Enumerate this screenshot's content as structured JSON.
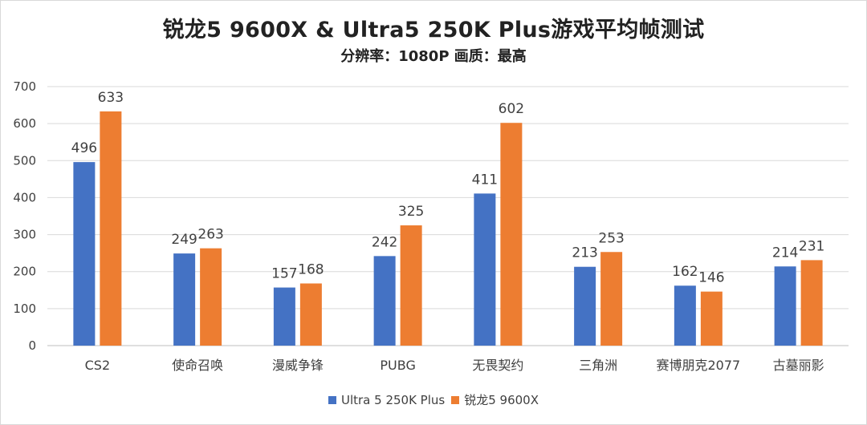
{
  "chart_data": {
    "type": "bar",
    "title": "锐龙5 9600X & Ultra5 250K Plus游戏平均帧测试",
    "subtitle": "分辨率：1080P   画质：最高",
    "categories": [
      "CS2",
      "使命召唤",
      "漫威争锋",
      "PUBG",
      "无畏契约",
      "三角洲",
      "赛博朋克2077",
      "古墓丽影"
    ],
    "series": [
      {
        "name": "Ultra 5 250K Plus",
        "color": "#4472C4",
        "values": [
          496,
          249,
          157,
          242,
          411,
          213,
          162,
          214
        ]
      },
      {
        "name": "锐龙5 9600X",
        "color": "#ED7D31",
        "values": [
          633,
          263,
          168,
          325,
          602,
          253,
          146,
          231
        ]
      }
    ],
    "ylim": [
      0,
      700
    ],
    "yticks": [
      0,
      100,
      200,
      300,
      400,
      500,
      600,
      700
    ],
    "grid": true,
    "legend": "bottom"
  }
}
